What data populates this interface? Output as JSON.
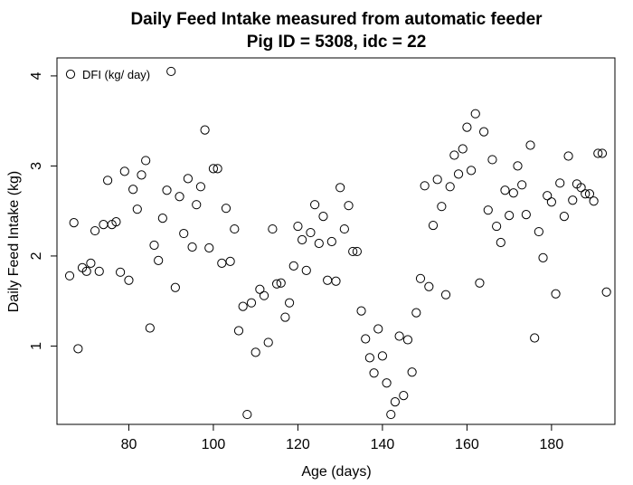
{
  "chart_data": {
    "type": "scatter",
    "title": "Daily Feed Intake measured from automatic feeder",
    "subtitle": "Pig ID = 5308, idc = 22",
    "xlabel": "Age (days)",
    "ylabel": "Daily Feed Intake (kg)",
    "xlim": [
      63,
      195
    ],
    "ylim": [
      0.13,
      4.2
    ],
    "xticks": [
      80,
      100,
      120,
      140,
      160,
      180
    ],
    "yticks": [
      1,
      2,
      3,
      4
    ],
    "grid": false,
    "legend": {
      "position": "top-left",
      "label": "DFI (kg/ day)",
      "marker": "open-circle"
    },
    "series": [
      {
        "name": "DFI (kg/ day)",
        "marker": "open-circle",
        "color": "#000000",
        "points": [
          [
            66,
            1.78
          ],
          [
            67,
            2.37
          ],
          [
            68,
            0.97
          ],
          [
            69,
            1.87
          ],
          [
            70,
            1.83
          ],
          [
            71,
            1.92
          ],
          [
            72,
            2.28
          ],
          [
            73,
            1.83
          ],
          [
            74,
            2.35
          ],
          [
            75,
            2.84
          ],
          [
            76,
            2.35
          ],
          [
            77,
            2.38
          ],
          [
            78,
            1.82
          ],
          [
            79,
            2.94
          ],
          [
            80,
            1.73
          ],
          [
            81,
            2.74
          ],
          [
            82,
            2.52
          ],
          [
            83,
            2.9
          ],
          [
            84,
            3.06
          ],
          [
            85,
            1.2
          ],
          [
            86,
            2.12
          ],
          [
            87,
            1.95
          ],
          [
            88,
            2.42
          ],
          [
            89,
            2.73
          ],
          [
            90,
            4.05
          ],
          [
            91,
            1.65
          ],
          [
            92,
            2.66
          ],
          [
            93,
            2.25
          ],
          [
            94,
            2.86
          ],
          [
            95,
            2.1
          ],
          [
            96,
            2.57
          ],
          [
            97,
            2.77
          ],
          [
            98,
            3.4
          ],
          [
            99,
            2.09
          ],
          [
            100,
            2.97
          ],
          [
            101,
            2.97
          ],
          [
            102,
            1.92
          ],
          [
            103,
            2.53
          ],
          [
            104,
            1.94
          ],
          [
            105,
            2.3
          ],
          [
            106,
            1.17
          ],
          [
            107,
            1.44
          ],
          [
            108,
            0.24
          ],
          [
            109,
            1.48
          ],
          [
            110,
            0.93
          ],
          [
            111,
            1.63
          ],
          [
            112,
            1.56
          ],
          [
            113,
            1.04
          ],
          [
            114,
            2.3
          ],
          [
            115,
            1.69
          ],
          [
            116,
            1.7
          ],
          [
            117,
            1.32
          ],
          [
            118,
            1.48
          ],
          [
            119,
            1.89
          ],
          [
            120,
            2.33
          ],
          [
            121,
            2.18
          ],
          [
            122,
            1.84
          ],
          [
            123,
            2.26
          ],
          [
            124,
            2.57
          ],
          [
            125,
            2.14
          ],
          [
            126,
            2.44
          ],
          [
            127,
            1.73
          ],
          [
            128,
            2.16
          ],
          [
            129,
            1.72
          ],
          [
            130,
            2.76
          ],
          [
            131,
            2.3
          ],
          [
            132,
            2.56
          ],
          [
            133,
            2.05
          ],
          [
            134,
            2.05
          ],
          [
            135,
            1.39
          ],
          [
            136,
            1.08
          ],
          [
            137,
            0.87
          ],
          [
            138,
            0.7
          ],
          [
            139,
            1.19
          ],
          [
            140,
            0.89
          ],
          [
            141,
            0.59
          ],
          [
            142,
            0.24
          ],
          [
            143,
            0.38
          ],
          [
            144,
            1.11
          ],
          [
            145,
            0.45
          ],
          [
            146,
            1.07
          ],
          [
            147,
            0.71
          ],
          [
            148,
            1.37
          ],
          [
            149,
            1.75
          ],
          [
            150,
            2.78
          ],
          [
            151,
            1.66
          ],
          [
            152,
            2.34
          ],
          [
            153,
            2.85
          ],
          [
            154,
            2.55
          ],
          [
            155,
            1.57
          ],
          [
            156,
            2.77
          ],
          [
            157,
            3.12
          ],
          [
            158,
            2.91
          ],
          [
            159,
            3.19
          ],
          [
            160,
            3.43
          ],
          [
            161,
            2.95
          ],
          [
            162,
            3.58
          ],
          [
            163,
            1.7
          ],
          [
            164,
            3.38
          ],
          [
            165,
            2.51
          ],
          [
            166,
            3.07
          ],
          [
            167,
            2.33
          ],
          [
            168,
            2.15
          ],
          [
            169,
            2.73
          ],
          [
            170,
            2.45
          ],
          [
            171,
            2.7
          ],
          [
            172,
            3.0
          ],
          [
            173,
            2.79
          ],
          [
            174,
            2.46
          ],
          [
            175,
            3.23
          ],
          [
            176,
            1.09
          ],
          [
            177,
            2.27
          ],
          [
            178,
            1.98
          ],
          [
            179,
            2.67
          ],
          [
            180,
            2.6
          ],
          [
            181,
            1.58
          ],
          [
            182,
            2.81
          ],
          [
            183,
            2.44
          ],
          [
            184,
            3.11
          ],
          [
            185,
            2.62
          ],
          [
            186,
            2.8
          ],
          [
            187,
            2.76
          ],
          [
            188,
            2.69
          ],
          [
            189,
            2.69
          ],
          [
            190,
            2.61
          ],
          [
            191,
            3.14
          ],
          [
            192,
            3.14
          ],
          [
            193,
            1.6
          ]
        ]
      }
    ]
  }
}
